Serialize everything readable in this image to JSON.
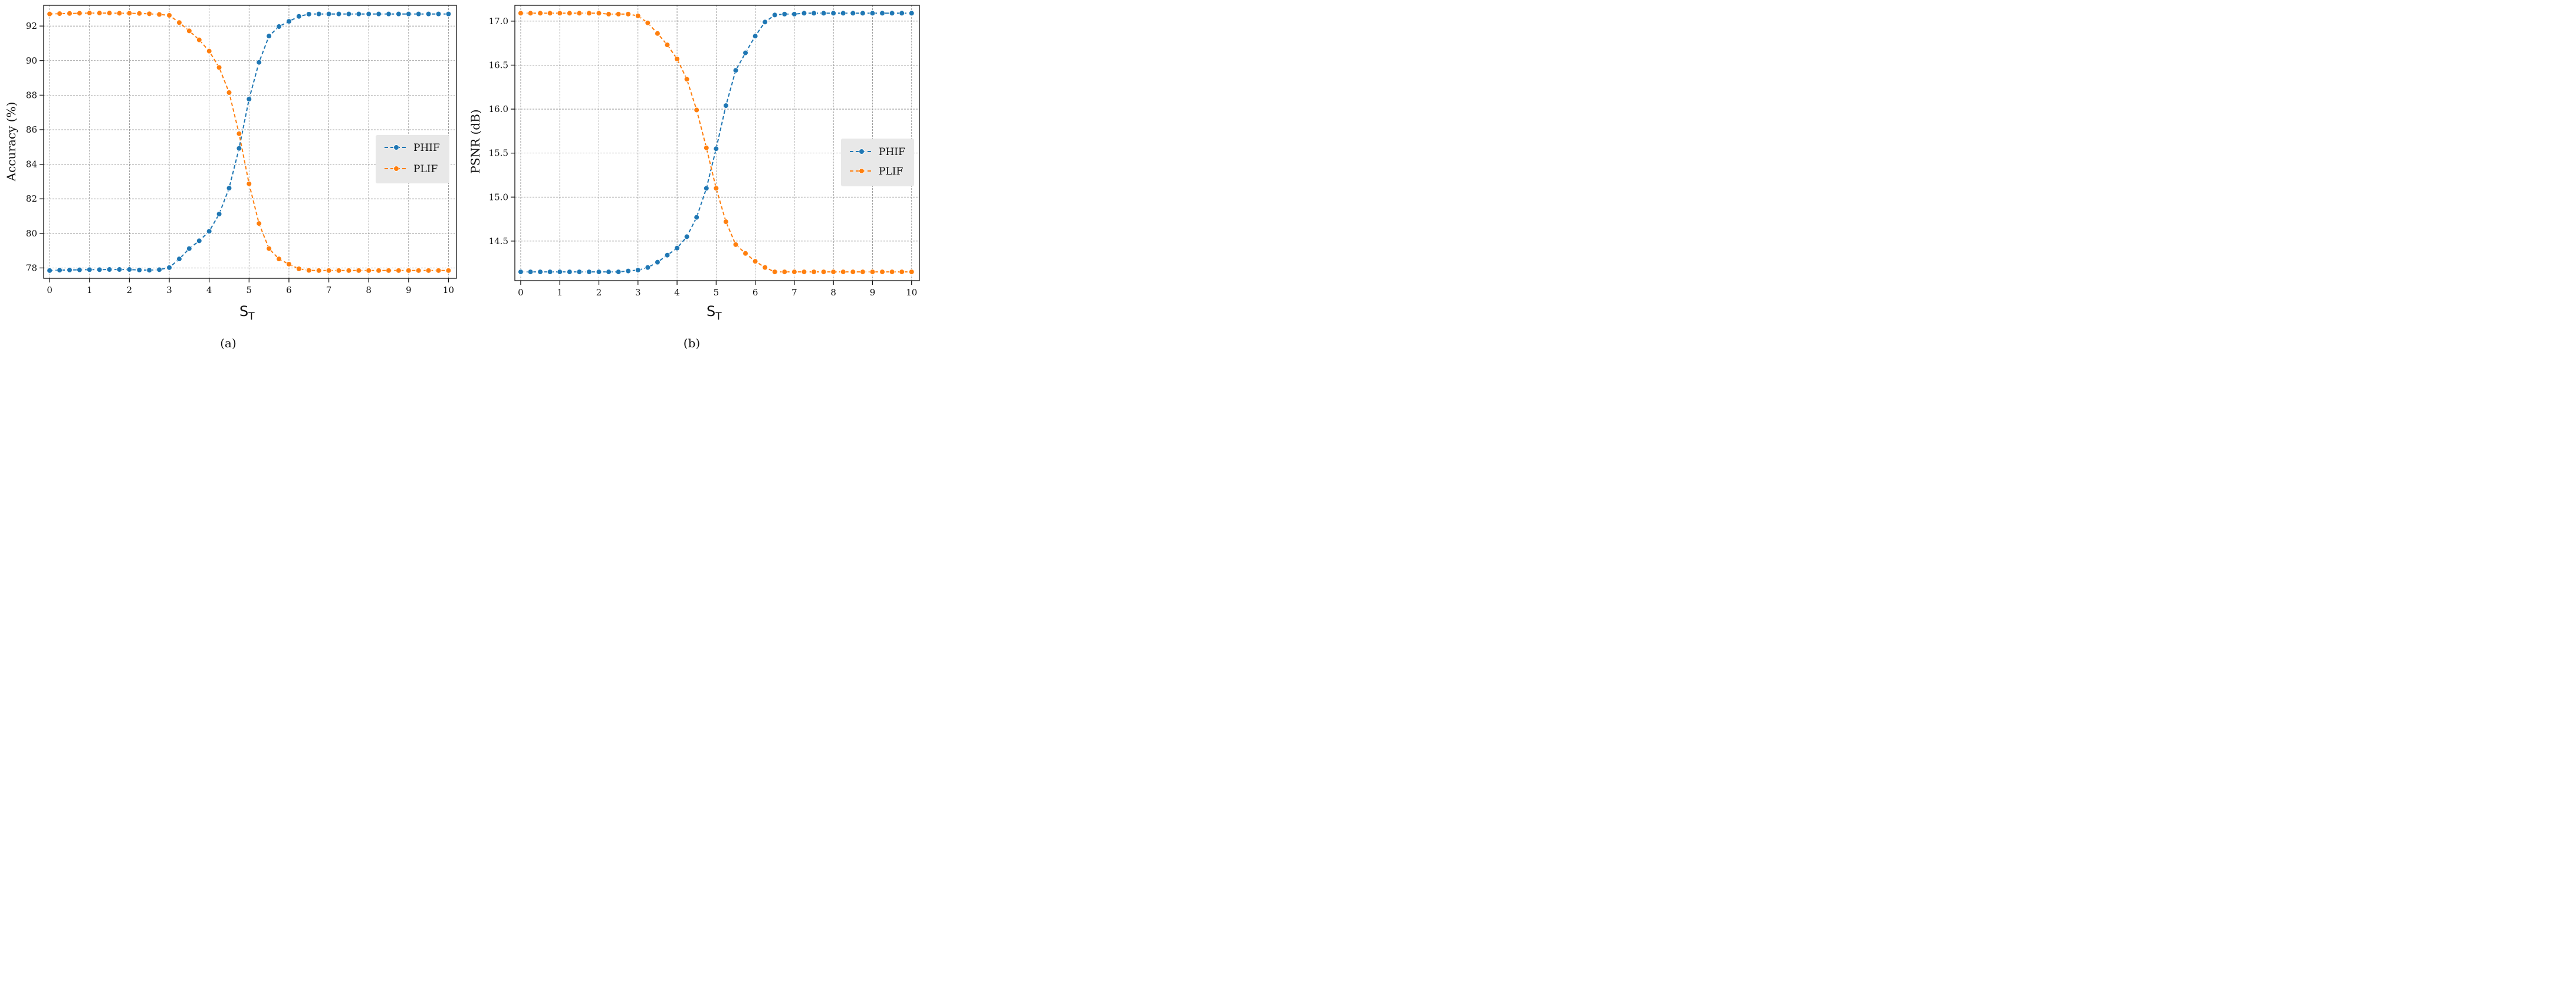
{
  "figure": {
    "panel_labels": [
      "(a)",
      "(b)"
    ]
  },
  "colors": {
    "phif": "#1f77b4",
    "plif": "#ff7f0e",
    "grid": "#8a8a8a",
    "legend_bg": "#e8e8e8"
  },
  "chart_data": [
    {
      "type": "line",
      "xlabel_main": "S",
      "xlabel_sub": "T",
      "ylabel": "Accuracy (%)",
      "xlim": [
        -0.15,
        10.2
      ],
      "ylim": [
        77.4,
        93.2
      ],
      "xticks": [
        0,
        1,
        2,
        3,
        4,
        5,
        6,
        7,
        8,
        9,
        10
      ],
      "xtick_labels": [
        "0",
        "1",
        "2",
        "3",
        "4",
        "5",
        "6",
        "7",
        "8",
        "9",
        "10"
      ],
      "yticks": [
        78,
        80,
        82,
        84,
        86,
        88,
        90,
        92
      ],
      "ytick_labels": [
        "78",
        "80",
        "82",
        "84",
        "86",
        "88",
        "90",
        "92"
      ],
      "grid": true,
      "legend_position": "center-right",
      "x": [
        0,
        0.25,
        0.5,
        0.75,
        1,
        1.25,
        1.5,
        1.75,
        2,
        2.25,
        2.5,
        2.75,
        3,
        3.25,
        3.5,
        3.75,
        4,
        4.25,
        4.5,
        4.75,
        5,
        5.25,
        5.5,
        5.75,
        6,
        6.25,
        6.5,
        6.75,
        7,
        7.25,
        7.5,
        7.75,
        8,
        8.25,
        8.5,
        8.75,
        9,
        9.25,
        9.5,
        9.75,
        10
      ],
      "series": [
        {
          "name": "PHIF",
          "values": [
            77.85,
            77.87,
            77.88,
            77.89,
            77.9,
            77.9,
            77.91,
            77.91,
            77.91,
            77.88,
            77.87,
            77.9,
            78.02,
            78.52,
            79.12,
            79.57,
            80.12,
            81.12,
            82.62,
            84.92,
            87.77,
            89.9,
            91.42,
            91.97,
            92.27,
            92.56,
            92.69,
            92.7,
            92.7,
            92.7,
            92.7,
            92.7,
            92.7,
            92.7,
            92.7,
            92.7,
            92.7,
            92.7,
            92.7,
            92.7,
            92.7
          ]
        },
        {
          "name": "PLIF",
          "values": [
            92.7,
            92.72,
            92.73,
            92.74,
            92.75,
            92.75,
            92.75,
            92.74,
            92.74,
            92.73,
            92.71,
            92.67,
            92.62,
            92.2,
            91.72,
            91.2,
            90.55,
            89.6,
            88.15,
            85.77,
            82.87,
            80.57,
            79.12,
            78.52,
            78.22,
            77.95,
            77.86,
            77.85,
            77.85,
            77.85,
            77.85,
            77.85,
            77.85,
            77.85,
            77.85,
            77.85,
            77.85,
            77.85,
            77.85,
            77.85,
            77.85
          ]
        }
      ]
    },
    {
      "type": "line",
      "xlabel_main": "S",
      "xlabel_sub": "T",
      "ylabel": "PSNR (dB)",
      "xlim": [
        -0.15,
        10.2
      ],
      "ylim": [
        14.05,
        17.18
      ],
      "xticks": [
        0,
        1,
        2,
        3,
        4,
        5,
        6,
        7,
        8,
        9,
        10
      ],
      "xtick_labels": [
        "0",
        "1",
        "2",
        "3",
        "4",
        "5",
        "6",
        "7",
        "8",
        "9",
        "10"
      ],
      "yticks": [
        14.5,
        15.0,
        15.5,
        16.0,
        16.5,
        17.0
      ],
      "ytick_labels": [
        "14.5",
        "15.0",
        "15.5",
        "16.0",
        "16.5",
        "17.0"
      ],
      "grid": true,
      "legend_position": "center-right",
      "x": [
        0,
        0.25,
        0.5,
        0.75,
        1,
        1.25,
        1.5,
        1.75,
        2,
        2.25,
        2.5,
        2.75,
        3,
        3.25,
        3.5,
        3.75,
        4,
        4.25,
        4.5,
        4.75,
        5,
        5.25,
        5.5,
        5.75,
        6,
        6.25,
        6.5,
        6.75,
        7,
        7.25,
        7.5,
        7.75,
        8,
        8.25,
        8.5,
        8.75,
        9,
        9.25,
        9.5,
        9.75,
        10
      ],
      "series": [
        {
          "name": "PHIF",
          "values": [
            14.15,
            14.15,
            14.15,
            14.15,
            14.15,
            14.15,
            14.15,
            14.15,
            14.15,
            14.15,
            14.15,
            14.16,
            14.17,
            14.2,
            14.26,
            14.34,
            14.42,
            14.55,
            14.77,
            15.1,
            15.55,
            16.04,
            16.44,
            16.64,
            16.83,
            16.99,
            17.07,
            17.08,
            17.08,
            17.09,
            17.09,
            17.09,
            17.09,
            17.09,
            17.09,
            17.09,
            17.09,
            17.09,
            17.09,
            17.09,
            17.09
          ]
        },
        {
          "name": "PLIF",
          "values": [
            17.09,
            17.09,
            17.09,
            17.09,
            17.09,
            17.09,
            17.09,
            17.09,
            17.09,
            17.08,
            17.08,
            17.08,
            17.06,
            16.98,
            16.86,
            16.73,
            16.57,
            16.34,
            15.99,
            15.56,
            15.1,
            14.72,
            14.46,
            14.36,
            14.27,
            14.2,
            14.15,
            14.15,
            14.15,
            14.15,
            14.15,
            14.15,
            14.15,
            14.15,
            14.15,
            14.15,
            14.15,
            14.15,
            14.15,
            14.15,
            14.15
          ]
        }
      ]
    }
  ]
}
